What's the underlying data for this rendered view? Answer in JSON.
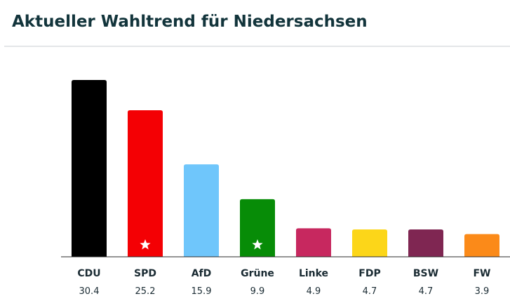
{
  "title": "Aktueller Wahltrend für Niedersachsen",
  "chart_data": {
    "type": "bar",
    "title": "Aktueller Wahltrend für Niedersachsen",
    "xlabel": "",
    "ylabel": "",
    "ylim": [
      0,
      30.4
    ],
    "grid": false,
    "legend": "none",
    "categories": [
      "CDU",
      "SPD",
      "AfD",
      "Grüne",
      "Linke",
      "FDP",
      "BSW",
      "FW"
    ],
    "values": [
      30.4,
      25.2,
      15.9,
      9.9,
      4.9,
      4.7,
      4.7,
      3.9
    ],
    "value_labels": [
      "30.4",
      "25.2",
      "15.9",
      "9.9",
      "4.9",
      "4.7",
      "4.7",
      "3.9"
    ],
    "colors": [
      "#000000",
      "#f40004",
      "#6fc6fb",
      "#078c07",
      "#c7285f",
      "#fcd619",
      "#7f2652",
      "#fb8a19"
    ],
    "star_marker": [
      false,
      true,
      false,
      true,
      false,
      false,
      false,
      false
    ],
    "star_icon": "star-icon"
  }
}
